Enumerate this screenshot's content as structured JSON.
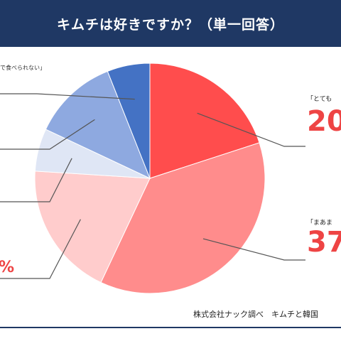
{
  "title": "キムチは好きですか？（単一回答）",
  "source": "株式会社ナック調べ　キムチと韓国",
  "colors": {
    "title_bg": "#1f3864",
    "leader": "#555555"
  },
  "chart_data": {
    "type": "pie",
    "title": "キムチは好きですか？（単一回答）",
    "slices": [
      {
        "label": "「とても",
        "value": 20,
        "pct_text": "20",
        "color": "#ff4d4d"
      },
      {
        "label": "「まあま",
        "value": 37,
        "pct_text": "37",
        "color": "#ff8c8c"
      },
      {
        "label": "",
        "value": 19,
        "pct_text": "%",
        "color": "#ffcccc"
      },
      {
        "label": "",
        "value": 6,
        "pct_text": "",
        "color": "#dfe6f5"
      },
      {
        "label": "",
        "value": 12,
        "pct_text": "",
        "color": "#8ea9e0"
      },
      {
        "label": "で食べられない」",
        "value": 6,
        "pct_text": "",
        "color": "#4472c4"
      }
    ]
  }
}
